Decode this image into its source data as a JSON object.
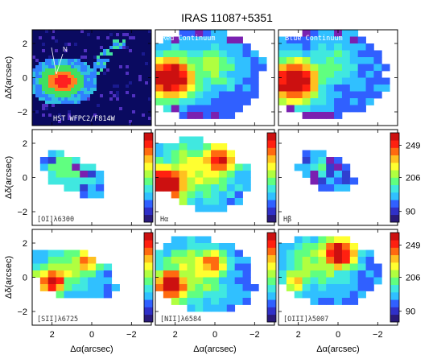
{
  "figure": {
    "title": "IRAS 11087+5351",
    "ylabel": "Δδ(arcsec)",
    "xlabel": "Δα(arcsec)",
    "x_ticks": [
      "2",
      "0",
      "−2"
    ],
    "y_ticks": [
      "2",
      "0",
      "−2"
    ]
  },
  "panels": [
    {
      "label": "HST WFPC2/F814W",
      "annotation": "N",
      "type": "image"
    },
    {
      "label": "Red Continuum",
      "type": "map"
    },
    {
      "label": "Blue Continuum",
      "type": "map"
    },
    {
      "label": "[OI]λ6300",
      "type": "map",
      "colorbar": true
    },
    {
      "label": "Hα",
      "type": "map",
      "colorbar": true
    },
    {
      "label": "Hβ",
      "type": "map",
      "colorbar": true,
      "colorbar_ticks": [
        "249",
        "206",
        "90"
      ]
    },
    {
      "label": "[SII]λ6725",
      "type": "map",
      "colorbar": true
    },
    {
      "label": "[NII]λ6584",
      "type": "map",
      "colorbar": true
    },
    {
      "label": "[OIII]λ5007",
      "type": "map",
      "colorbar": true,
      "colorbar_ticks": [
        "249",
        "206",
        "90"
      ]
    }
  ],
  "colors": {
    "palette": [
      "#2a1a7a",
      "#3030c8",
      "#3060ff",
      "#30c0ff",
      "#40e8e0",
      "#60ff80",
      "#b0ff40",
      "#ffff30",
      "#ffc020",
      "#ff6a10",
      "#ff2010",
      "#cc1010"
    ],
    "purple": "#7a20b0"
  }
}
